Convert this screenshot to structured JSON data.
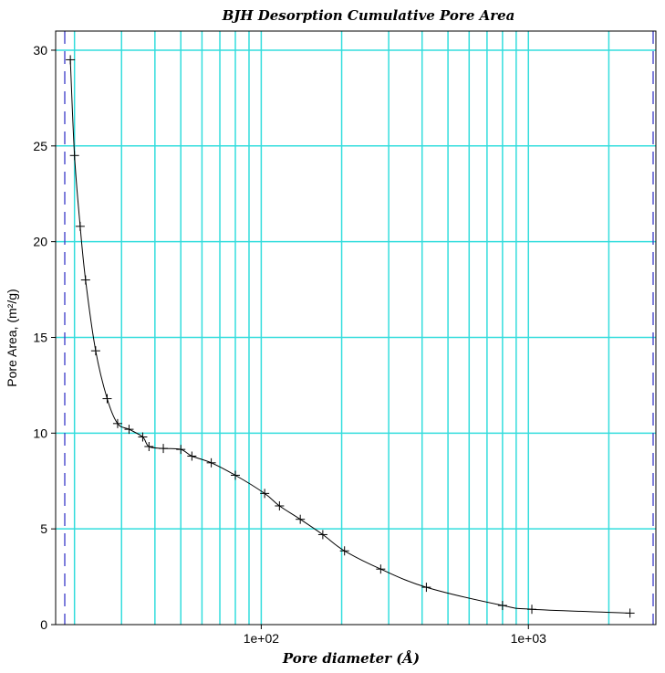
{
  "chart_data": {
    "type": "line",
    "title": "BJH Desorption Cumulative Pore Area",
    "xlabel": "Pore diameter (Å)",
    "ylabel": "Pore Area, (m²/g)",
    "x_scale": "log",
    "xlim": [
      17,
      3000
    ],
    "ylim": [
      0,
      31
    ],
    "y_ticks": [
      0,
      5,
      10,
      15,
      20,
      25,
      30
    ],
    "x_tick_labels": [
      {
        "value": 100,
        "label": "1e+02"
      },
      {
        "value": 1000,
        "label": "1e+03"
      }
    ],
    "x_gridlines": [
      20,
      30,
      40,
      50,
      60,
      70,
      80,
      90,
      100,
      200,
      300,
      400,
      500,
      600,
      700,
      800,
      900,
      1000,
      2000
    ],
    "y_gridlines": [
      5,
      10,
      15,
      20,
      25,
      30
    ],
    "dashed_x_lines": [
      17,
      3000
    ],
    "grid": true,
    "series": [
      {
        "x": [
          19.3,
          20.0,
          21.0,
          22.0,
          24.0,
          26.5,
          29.0,
          32.0,
          36.0,
          38.0,
          43.0,
          50.0,
          55.0,
          65.0,
          80.0,
          103.0,
          117.0,
          140.0,
          170.0,
          205.0,
          280.0,
          415.0,
          800.0,
          1030.0,
          2400.0
        ],
        "y": [
          29.5,
          24.5,
          20.8,
          18.0,
          14.3,
          11.8,
          10.5,
          10.2,
          9.8,
          9.3,
          9.2,
          9.15,
          8.8,
          8.45,
          7.8,
          6.85,
          6.2,
          5.5,
          4.7,
          3.85,
          2.9,
          1.95,
          1.0,
          0.8,
          0.6
        ]
      }
    ],
    "colors": {
      "grid": "#33dddd",
      "dashed": "#3a3ac8",
      "line": "#000000",
      "frame": "#000000"
    }
  }
}
